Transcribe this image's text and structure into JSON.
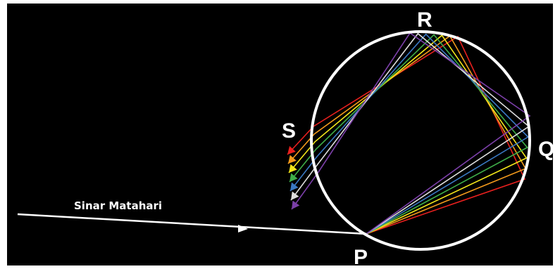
{
  "diagram": {
    "labels": {
      "r": "R",
      "s": "S",
      "q": "Q",
      "p": "P"
    },
    "sunlight": "Sinar Matahari"
  }
}
